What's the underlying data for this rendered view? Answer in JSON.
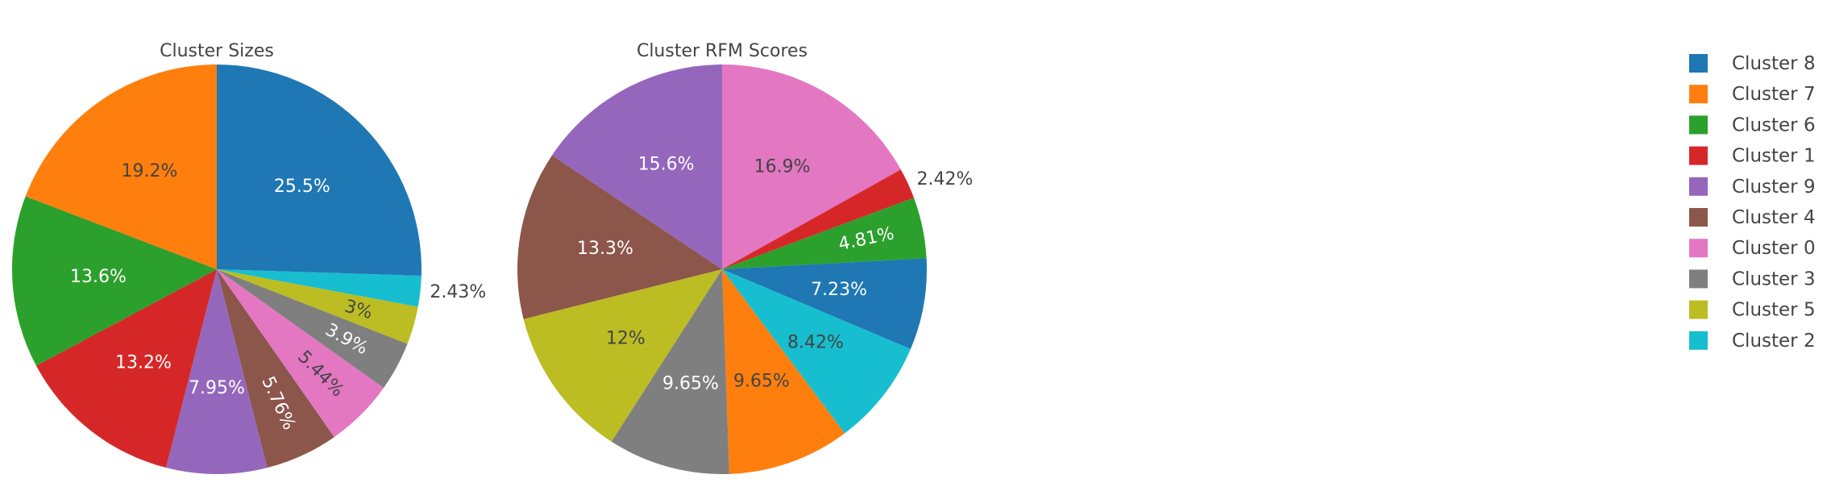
{
  "chart_data": [
    {
      "type": "pie",
      "title": "Cluster Sizes",
      "slices": [
        {
          "label": "Cluster 8",
          "value": 25.5,
          "text": "25.5%",
          "color": "#1f77b4"
        },
        {
          "label": "Cluster 2",
          "value": 2.43,
          "text": "2.43%",
          "color": "#17becf"
        },
        {
          "label": "Cluster 5",
          "value": 3.0,
          "text": "3%",
          "color": "#bcbd22"
        },
        {
          "label": "Cluster 3",
          "value": 3.9,
          "text": "3.9%",
          "color": "#7f7f7f"
        },
        {
          "label": "Cluster 0",
          "value": 5.44,
          "text": "5.44%",
          "color": "#e377c2"
        },
        {
          "label": "Cluster 4",
          "value": 5.76,
          "text": "5.76%",
          "color": "#8c564b"
        },
        {
          "label": "Cluster 9",
          "value": 7.95,
          "text": "7.95%",
          "color": "#9467bd"
        },
        {
          "label": "Cluster 1",
          "value": 13.2,
          "text": "13.2%",
          "color": "#d62728"
        },
        {
          "label": "Cluster 6",
          "value": 13.6,
          "text": "13.6%",
          "color": "#2ca02c"
        },
        {
          "label": "Cluster 7",
          "value": 19.2,
          "text": "19.2%",
          "color": "#ff7f0e"
        }
      ]
    },
    {
      "type": "pie",
      "title": "Cluster RFM Scores",
      "slices": [
        {
          "label": "Cluster 0",
          "value": 16.9,
          "text": "16.9%",
          "color": "#e377c2"
        },
        {
          "label": "Cluster 1",
          "value": 2.42,
          "text": "2.42%",
          "color": "#d62728"
        },
        {
          "label": "Cluster 6",
          "value": 4.81,
          "text": "4.81%",
          "color": "#2ca02c"
        },
        {
          "label": "Cluster 8",
          "value": 7.23,
          "text": "7.23%",
          "color": "#1f77b4"
        },
        {
          "label": "Cluster 2",
          "value": 8.42,
          "text": "8.42%",
          "color": "#17becf"
        },
        {
          "label": "Cluster 7",
          "value": 9.65,
          "text": "9.65%",
          "color": "#ff7f0e"
        },
        {
          "label": "Cluster 3",
          "value": 9.65,
          "text": "9.65%",
          "color": "#7f7f7f"
        },
        {
          "label": "Cluster 5",
          "value": 12.0,
          "text": "12%",
          "color": "#bcbd22"
        },
        {
          "label": "Cluster 4",
          "value": 13.3,
          "text": "13.3%",
          "color": "#8c564b"
        },
        {
          "label": "Cluster 9",
          "value": 15.6,
          "text": "15.6%",
          "color": "#9467bd"
        }
      ]
    }
  ],
  "legend": {
    "items": [
      {
        "label": "Cluster 8",
        "color": "#1f77b4"
      },
      {
        "label": "Cluster 7",
        "color": "#ff7f0e"
      },
      {
        "label": "Cluster 6",
        "color": "#2ca02c"
      },
      {
        "label": "Cluster 1",
        "color": "#d62728"
      },
      {
        "label": "Cluster 9",
        "color": "#9467bd"
      },
      {
        "label": "Cluster 4",
        "color": "#8c564b"
      },
      {
        "label": "Cluster 0",
        "color": "#e377c2"
      },
      {
        "label": "Cluster 3",
        "color": "#7f7f7f"
      },
      {
        "label": "Cluster 5",
        "color": "#bcbd22"
      },
      {
        "label": "Cluster 2",
        "color": "#17becf"
      }
    ]
  }
}
